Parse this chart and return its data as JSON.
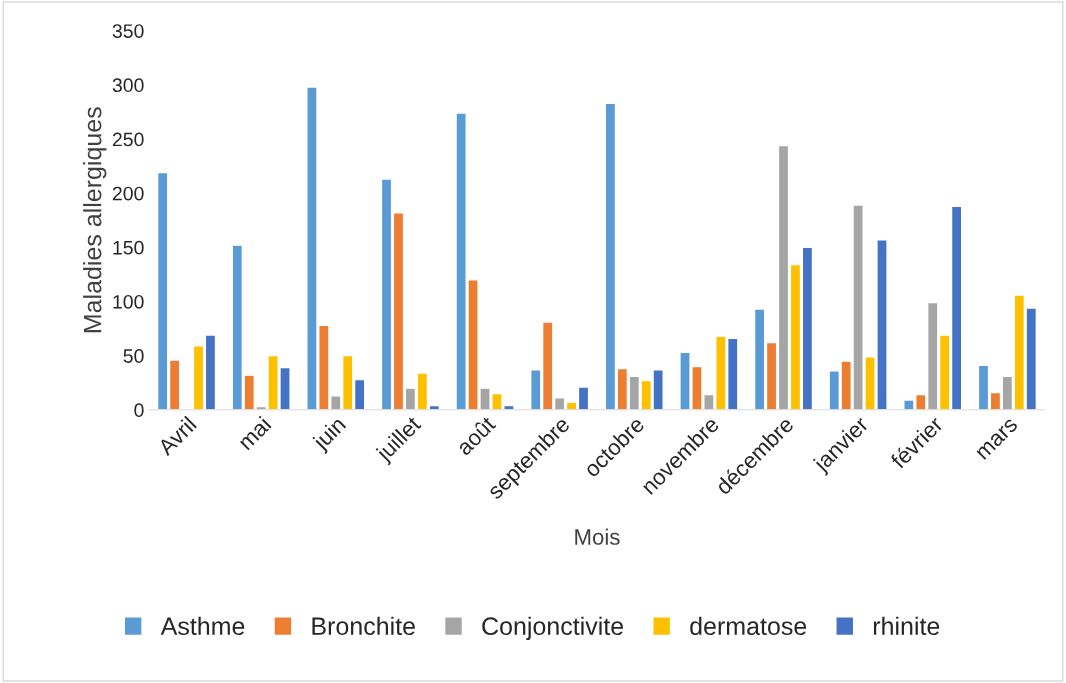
{
  "chart_data": {
    "type": "bar",
    "xlabel": "Mois",
    "ylabel": "Maladies allergiques",
    "categories": [
      "Avril",
      "mai",
      "juin",
      "juillet",
      "août",
      "septembre",
      "octobre",
      "novembre",
      "décembre",
      "janvier",
      "février",
      "mars"
    ],
    "series": [
      {
        "name": "Asthme",
        "color": "#5b9bd5",
        "values": [
          219,
          152,
          298,
          213,
          274,
          37,
          283,
          53,
          93,
          36,
          9,
          41
        ]
      },
      {
        "name": "Bronchite",
        "color": "#ed7d31",
        "values": [
          46,
          32,
          78,
          182,
          120,
          81,
          38,
          40,
          62,
          45,
          14,
          16
        ]
      },
      {
        "name": "Conjonctivite",
        "color": "#a5a5a5",
        "values": [
          null,
          3,
          13,
          20,
          20,
          11,
          31,
          14,
          244,
          189,
          99,
          31
        ]
      },
      {
        "name": "dermatose",
        "color": "#ffc000",
        "values": [
          59,
          50,
          50,
          34,
          15,
          7,
          27,
          68,
          134,
          49,
          69,
          106
        ]
      },
      {
        "name": "rhinite",
        "color": "#4472c4",
        "values": [
          69,
          39,
          28,
          4,
          4,
          21,
          37,
          66,
          150,
          157,
          188,
          94
        ]
      }
    ],
    "ylim": [
      0,
      350
    ],
    "yticks": [
      0,
      50,
      100,
      150,
      200,
      250,
      300,
      350
    ],
    "grid": false,
    "legend": "bottom"
  }
}
